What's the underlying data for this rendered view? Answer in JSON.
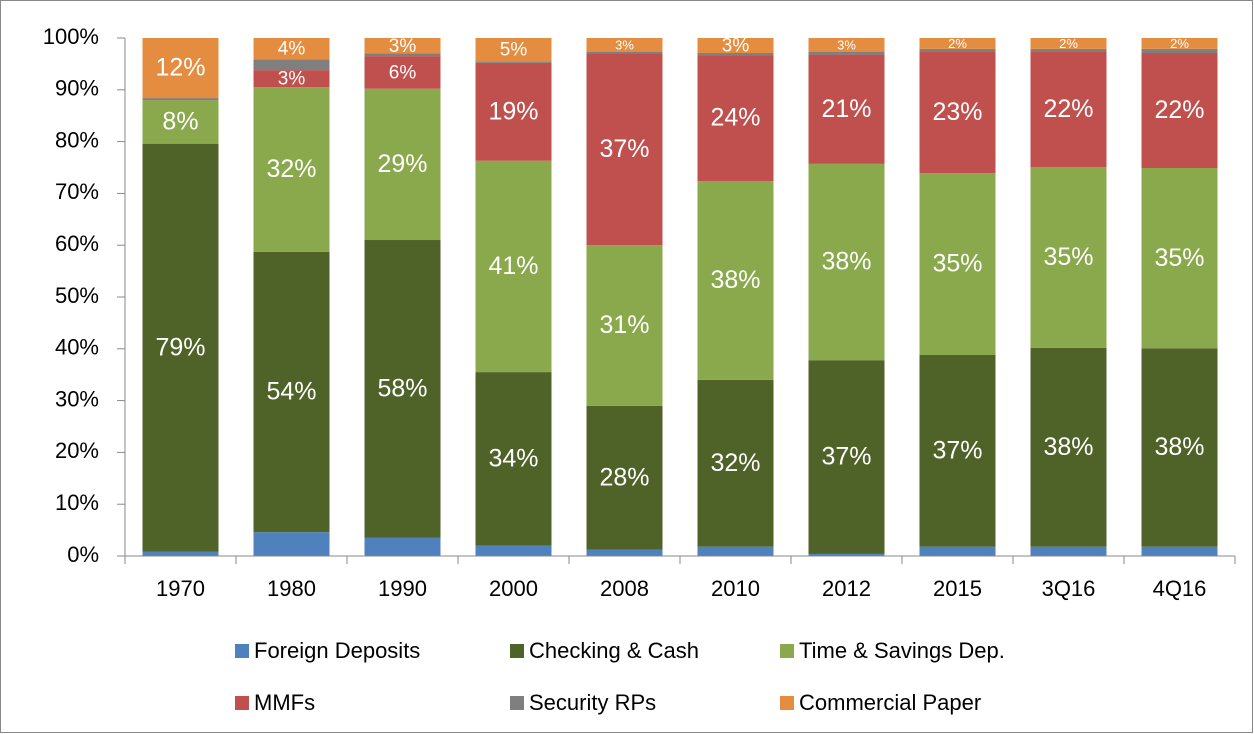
{
  "chart_data": {
    "type": "stacked_bar",
    "categories": [
      "1970",
      "1980",
      "1990",
      "2000",
      "2008",
      "2010",
      "2012",
      "2015",
      "3Q16",
      "4Q16"
    ],
    "series": [
      {
        "name": "Foreign Deposits",
        "color": "#4f81bd",
        "values": [
          0.8,
          4.6,
          3.5,
          2,
          1.2,
          1.8,
          0.4,
          1.8,
          1.8,
          1.8
        ],
        "value_labels": [
          null,
          null,
          null,
          null,
          null,
          null,
          null,
          null,
          null,
          null
        ]
      },
      {
        "name": "Checking & Cash",
        "color": "#4f6228",
        "values": [
          78.8,
          54.1,
          57.5,
          33.5,
          27.8,
          32.2,
          37.4,
          37,
          38.4,
          38.3
        ],
        "value_labels": [
          "79%",
          "54%",
          "58%",
          "34%",
          "28%",
          "32%",
          "37%",
          "37%",
          "38%",
          "38%"
        ]
      },
      {
        "name": "Time & Savings Dep.",
        "color": "#8aa84c",
        "values": [
          8.4,
          31.8,
          29.2,
          40.8,
          31,
          38.4,
          37.9,
          35.1,
          34.9,
          34.8
        ],
        "value_labels": [
          "8%",
          "32%",
          "29%",
          "41%",
          "31%",
          "38%",
          "38%",
          "35%",
          "35%",
          "35%"
        ]
      },
      {
        "name": "MMFs",
        "color": "#c0504d",
        "values": [
          0.2,
          3.3,
          6.3,
          18.9,
          37,
          24.3,
          21.1,
          23.4,
          22.2,
          22.2
        ],
        "value_labels": [
          null,
          "3%",
          "6%",
          "19%",
          "37%",
          "24%",
          "21%",
          "23%",
          "22%",
          "22%"
        ]
      },
      {
        "name": "Security RPs",
        "color": "#7f7f7f",
        "values": [
          0.2,
          2.1,
          0.5,
          0.3,
          0.3,
          0.4,
          0.5,
          0.6,
          0.6,
          0.8
        ],
        "value_labels": [
          null,
          null,
          null,
          null,
          null,
          null,
          null,
          null,
          null,
          null
        ]
      },
      {
        "name": "Commercial Paper",
        "color": "#e48c3f",
        "values": [
          11.6,
          4.1,
          3,
          4.5,
          2.7,
          2.9,
          2.7,
          2.1,
          2.1,
          2.1
        ],
        "value_labels": [
          "12%",
          "4%",
          "3%",
          "5%",
          "3%",
          "3%",
          "3%",
          "2%",
          "2%",
          "2%"
        ]
      }
    ],
    "ylim": [
      0,
      100
    ],
    "yticks": [
      {
        "value": 0,
        "label": "0%"
      },
      {
        "value": 10,
        "label": "10%"
      },
      {
        "value": 20,
        "label": "20%"
      },
      {
        "value": 30,
        "label": "30%"
      },
      {
        "value": 40,
        "label": "40%"
      },
      {
        "value": 50,
        "label": "50%"
      },
      {
        "value": 60,
        "label": "60%"
      },
      {
        "value": 70,
        "label": "70%"
      },
      {
        "value": 80,
        "label": "80%"
      },
      {
        "value": 90,
        "label": "90%"
      },
      {
        "value": 100,
        "label": "100%"
      }
    ],
    "grid": false,
    "legend": "bottom"
  }
}
